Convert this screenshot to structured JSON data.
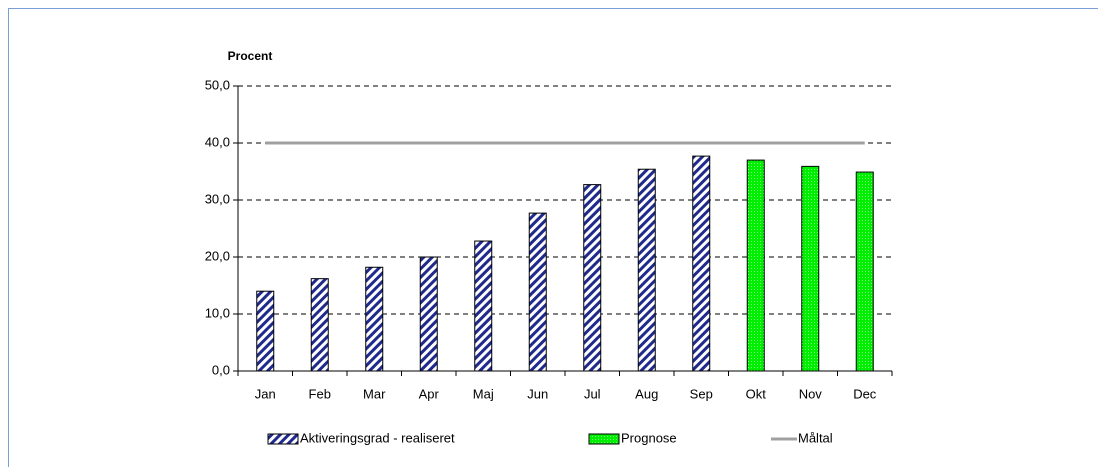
{
  "chart_data": {
    "type": "bar",
    "y_label": "Procent",
    "categories": [
      "Jan",
      "Feb",
      "Mar",
      "Apr",
      "Maj",
      "Jun",
      "Jul",
      "Aug",
      "Sep",
      "Okt",
      "Nov",
      "Dec"
    ],
    "series": [
      {
        "name": "Aktiveringsgrad - realiseret",
        "type": "bar",
        "pattern": "hatch",
        "color": "#1f2a8c",
        "values": [
          14.0,
          16.2,
          18.2,
          20.0,
          22.8,
          27.7,
          32.7,
          35.4,
          37.7,
          null,
          null,
          null
        ]
      },
      {
        "name": "Prognose",
        "type": "bar",
        "pattern": "dots",
        "color": "#00ee00",
        "values": [
          null,
          null,
          null,
          null,
          null,
          null,
          null,
          null,
          null,
          37.0,
          35.9,
          34.9
        ]
      },
      {
        "name": "Måltal",
        "type": "line",
        "color": "#a0a0a0",
        "values": [
          40,
          40,
          40,
          40,
          40,
          40,
          40,
          40,
          40,
          40,
          40,
          40
        ]
      }
    ],
    "ylim": [
      0,
      50
    ],
    "yticks": [
      {
        "value": 0,
        "label": "0,0"
      },
      {
        "value": 10,
        "label": "10,0"
      },
      {
        "value": 20,
        "label": "20,0"
      },
      {
        "value": 30,
        "label": "30,0"
      },
      {
        "value": 40,
        "label": "40,0"
      },
      {
        "value": 50,
        "label": "50,0"
      }
    ],
    "grid": true,
    "legend": "bottom"
  }
}
